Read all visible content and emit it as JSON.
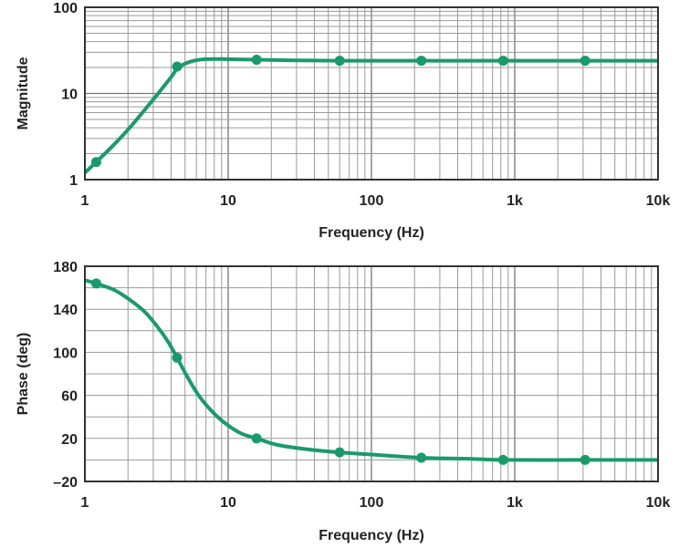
{
  "chart_data": [
    {
      "type": "line",
      "xlabel": "Frequency (Hz)",
      "ylabel": "Magnitude",
      "x_scale": "log",
      "y_scale": "log",
      "xlim": [
        1,
        10000
      ],
      "ylim": [
        1,
        100
      ],
      "x_ticks": [
        {
          "value": 1,
          "label": "1"
        },
        {
          "value": 10,
          "label": "10"
        },
        {
          "value": 100,
          "label": "100"
        },
        {
          "value": 1000,
          "label": "1k"
        },
        {
          "value": 10000,
          "label": "10k"
        }
      ],
      "y_ticks": [
        {
          "value": 1,
          "label": "1"
        },
        {
          "value": 10,
          "label": "10"
        },
        {
          "value": 100,
          "label": "100"
        }
      ],
      "grid": true,
      "color": "#1a9a6c",
      "series": [
        {
          "curve": {
            "x": [
              1.0,
              1.2,
              1.5,
              2.0,
              3.0,
              4.0,
              4.5,
              5.5,
              7.0,
              10,
              15.8,
              30,
              60,
              100,
              223,
              1000,
              10000
            ],
            "y": [
              1.2,
              1.6,
              2.3,
              3.8,
              8.5,
              15.5,
              20.0,
              23.5,
              25.0,
              25.0,
              24.6,
              24.2,
              24.0,
              24.0,
              24.0,
              24.0,
              24.0
            ]
          },
          "markers": {
            "x": [
              1.2,
              4.4,
              15.8,
              60,
              223,
              830,
              3100
            ],
            "y": [
              1.6,
              20.5,
              24.6,
              24.0,
              24.0,
              24.0,
              24.0
            ]
          }
        }
      ]
    },
    {
      "type": "line",
      "xlabel": "Frequency (Hz)",
      "ylabel": "Phase (deg)",
      "x_scale": "log",
      "y_scale": "linear",
      "xlim": [
        1,
        10000
      ],
      "ylim": [
        -20,
        180
      ],
      "x_ticks": [
        {
          "value": 1,
          "label": "1"
        },
        {
          "value": 10,
          "label": "10"
        },
        {
          "value": 100,
          "label": "100"
        },
        {
          "value": 1000,
          "label": "1k"
        },
        {
          "value": 10000,
          "label": "10k"
        }
      ],
      "y_ticks": [
        {
          "value": 180,
          "label": "180"
        },
        {
          "value": 140,
          "label": "140"
        },
        {
          "value": 100,
          "label": "100"
        },
        {
          "value": 60,
          "label": "60"
        },
        {
          "value": 20,
          "label": "20"
        },
        {
          "value": -20,
          "label": "–20"
        }
      ],
      "grid": true,
      "color": "#1a9a6c",
      "series": [
        {
          "curve": {
            "x": [
              1.0,
              1.2,
              1.6,
              2.0,
              2.6,
              3.2,
              3.8,
              4.4,
              5.2,
              6.3,
              8.0,
              10,
              12.6,
              15.8,
              22,
              35,
              60,
              100,
              223,
              500,
              830,
              3100,
              10000
            ],
            "y": [
              167,
              164,
              158,
              150,
              138,
              124,
              110,
              95,
              77,
              59,
              43,
              32,
              24,
              20,
              14,
              10,
              7,
              5,
              2,
              1,
              0,
              0,
              0
            ]
          },
          "markers": {
            "x": [
              1.2,
              4.4,
              15.8,
              60,
              223,
              830,
              3100
            ],
            "y": [
              164,
              95,
              20,
              7,
              2,
              0,
              0
            ]
          }
        }
      ]
    }
  ]
}
